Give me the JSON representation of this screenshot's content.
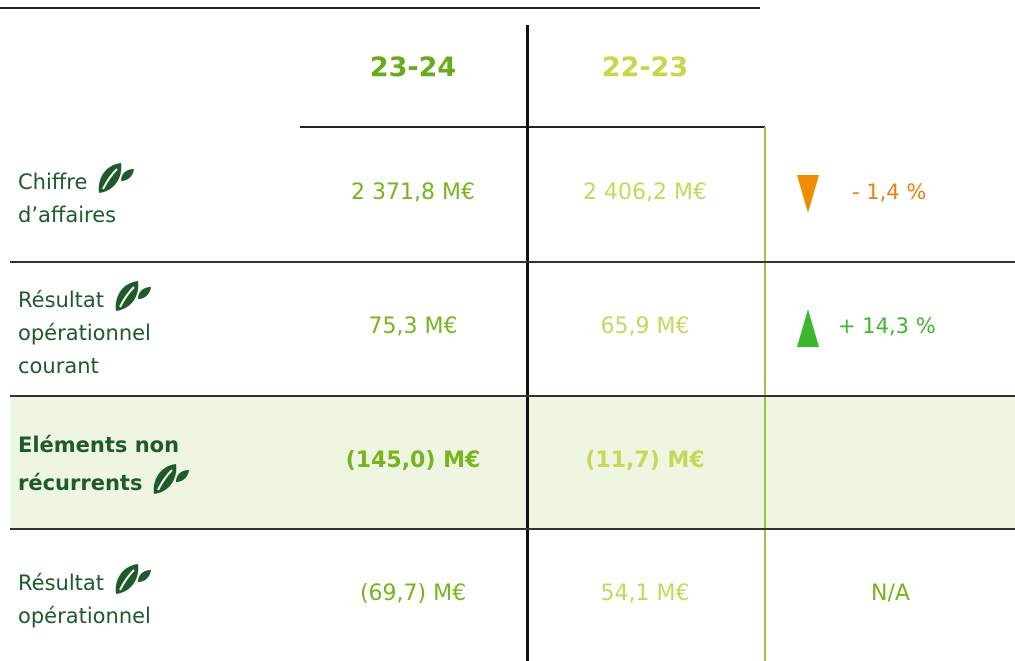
{
  "header": {
    "columns": [
      "23-24",
      "22-23"
    ]
  },
  "rows": [
    {
      "label": [
        "Chiffre",
        "d’affaires"
      ],
      "current": "2 371,8 M€",
      "previous": "2 406,2 M€",
      "change": "- 1,4 %",
      "trend": "down"
    },
    {
      "label": [
        "Résultat",
        "opérationnel",
        "courant"
      ],
      "current": "75,3 M€",
      "previous": "65,9 M€",
      "change": "+ 14,3 %",
      "trend": "up"
    },
    {
      "label": [
        "Eléments non",
        "récurrents"
      ],
      "current": "(145,0) M€",
      "previous": "(11,7) M€",
      "highlight": true
    },
    {
      "label": [
        "Résultat",
        "opérationnel"
      ],
      "current": "(69,7) M€",
      "previous": "54,1 M€",
      "change": "N/A"
    }
  ]
}
